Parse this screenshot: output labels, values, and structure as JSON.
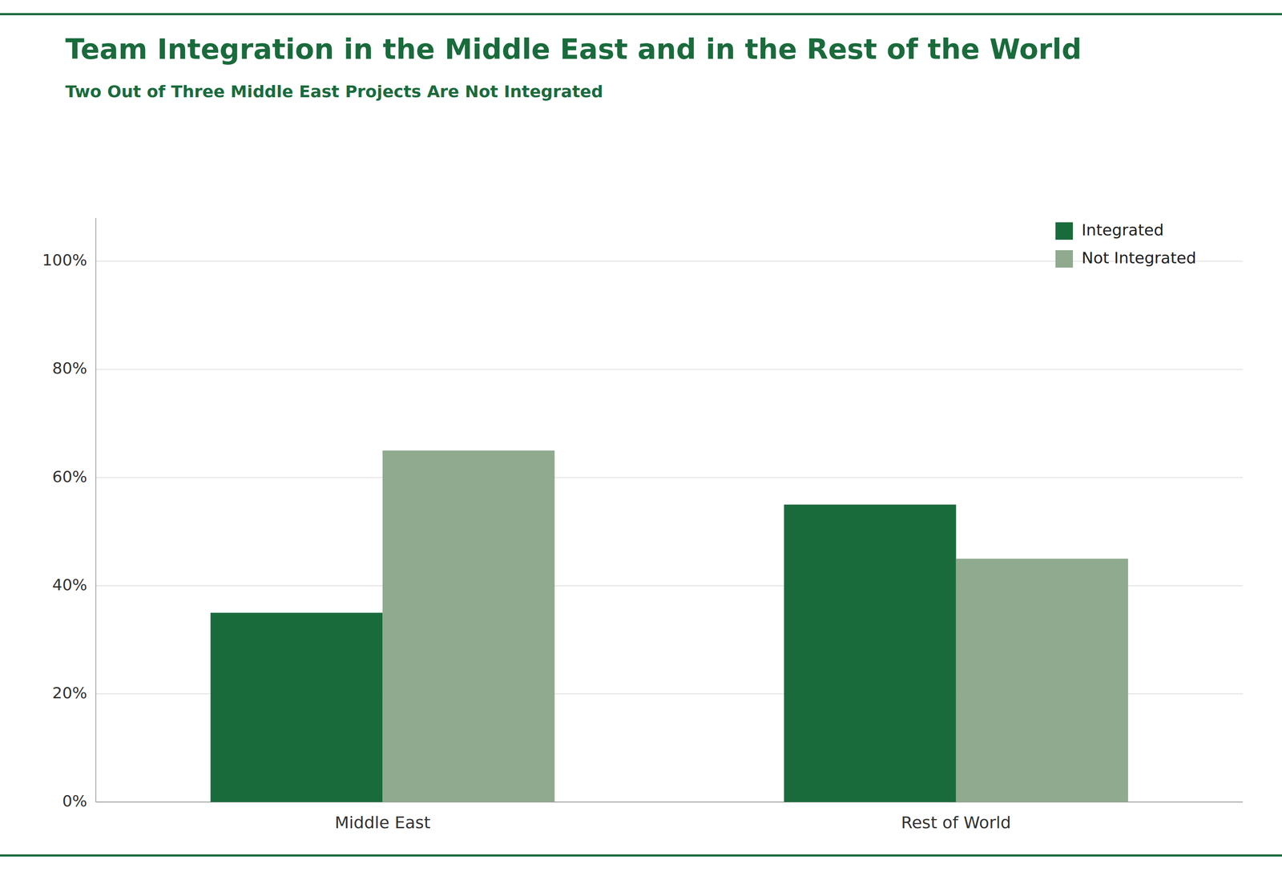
{
  "chart_data": {
    "type": "bar",
    "title": "Team Integration in the Middle East and in the Rest of the World",
    "subtitle": "Two Out of Three Middle East Projects Are Not Integrated",
    "categories": [
      "Middle East",
      "Rest of World"
    ],
    "series": [
      {
        "name": "Integrated",
        "color": "#1a6b3c",
        "values": [
          0.35,
          0.55
        ]
      },
      {
        "name": "Not Integrated",
        "color": "#8faa8f",
        "values": [
          0.65,
          0.45
        ]
      }
    ],
    "ylim": [
      0,
      1.08
    ],
    "yticks": [
      {
        "value": 0,
        "label": "0%"
      },
      {
        "value": 0.2,
        "label": "20%"
      },
      {
        "value": 0.4,
        "label": "40%"
      },
      {
        "value": 0.6,
        "label": "60%"
      },
      {
        "value": 0.8,
        "label": "80%"
      },
      {
        "value": 1.0,
        "label": "100%"
      }
    ],
    "grid": true,
    "legend": "upper right"
  }
}
